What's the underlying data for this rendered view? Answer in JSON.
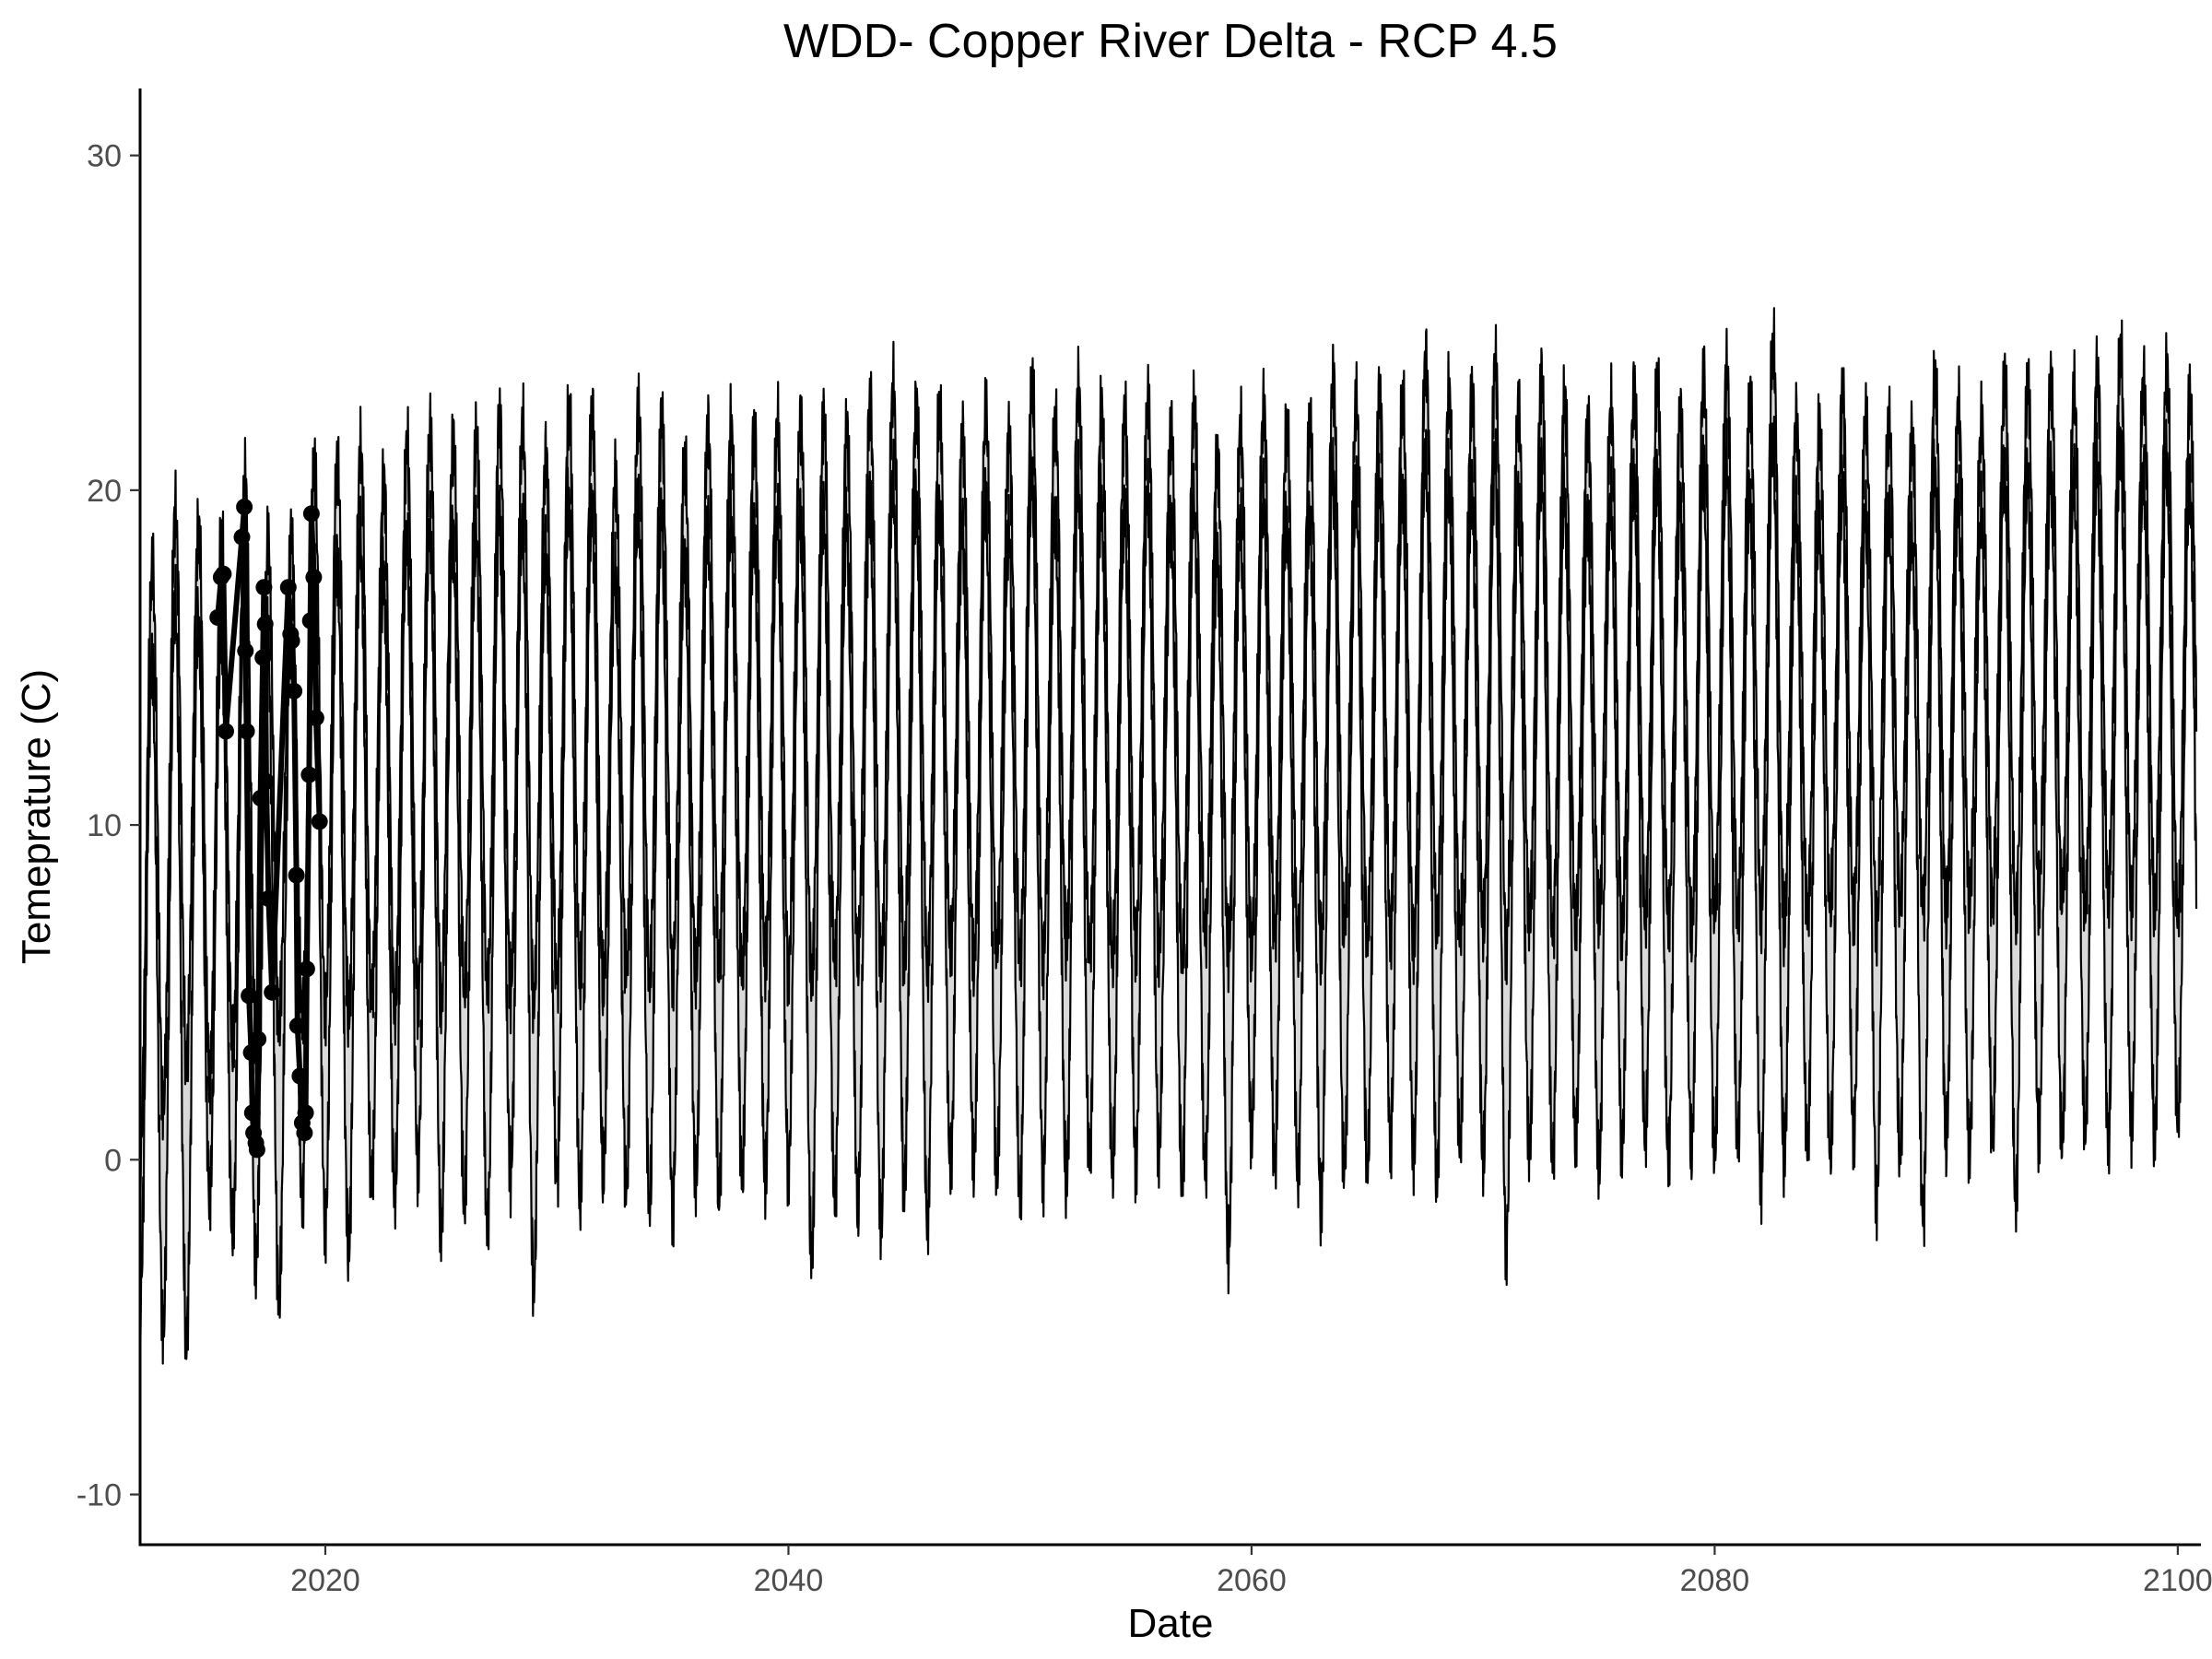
{
  "chart_data": {
    "type": "line",
    "title": "WDD- Copper River Delta - RCP 4.5",
    "xlabel": "Date",
    "ylabel": "Temeprature (C)",
    "xlim": [
      2012,
      2101
    ],
    "ylim": [
      -11.5,
      32
    ],
    "x_ticks": [
      2020,
      2040,
      2060,
      2080,
      2100
    ],
    "y_ticks": [
      -10,
      0,
      10,
      20,
      30
    ],
    "x_tick_labels": [
      "2020",
      "2040",
      "2060",
      "2080",
      "2100"
    ],
    "y_tick_labels": [
      "-10",
      "0",
      "10",
      "20",
      "30"
    ],
    "grid": false,
    "legend": "none",
    "line_color": "#000000",
    "ribbon_color": "#d9d9d9",
    "series": [
      {
        "kind": "projection-ribbon",
        "years": [
          2012,
          2013,
          2014,
          2015,
          2016,
          2017,
          2018,
          2019,
          2020,
          2021,
          2022,
          2023,
          2024,
          2025,
          2026,
          2027,
          2028,
          2029,
          2030,
          2031,
          2032,
          2033,
          2034,
          2035,
          2036,
          2037,
          2038,
          2039,
          2040,
          2041,
          2042,
          2043,
          2044,
          2045,
          2046,
          2047,
          2048,
          2049,
          2050,
          2051,
          2052,
          2053,
          2054,
          2055,
          2056,
          2057,
          2058,
          2059,
          2060,
          2061,
          2062,
          2063,
          2064,
          2065,
          2066,
          2067,
          2068,
          2069,
          2070,
          2071,
          2072,
          2073,
          2074,
          2075,
          2076,
          2077,
          2078,
          2079,
          2080,
          2081,
          2082,
          2083,
          2084,
          2085,
          2086,
          2087,
          2088,
          2089,
          2090,
          2091,
          2092,
          2093,
          2094,
          2095,
          2096,
          2097,
          2098,
          2099,
          2100
        ],
        "summer_peak_upper": [
          17.7,
          19.4,
          18.9,
          18.7,
          20.4,
          18.4,
          18.6,
          20.7,
          20.9,
          21.2,
          20.3,
          21.4,
          21.8,
          21.5,
          21.6,
          22.2,
          21.9,
          21.1,
          22.4,
          22.4,
          20.3,
          22.4,
          22.2,
          20.8,
          21.9,
          21.9,
          21.8,
          22.0,
          22.1,
          22.1,
          21.8,
          22.6,
          23.1,
          22.6,
          22.4,
          21.7,
          22.3,
          21.6,
          23.2,
          22.1,
          23.1,
          22.4,
          22.3,
          22.6,
          21.9,
          22.5,
          21.0,
          21.8,
          22.5,
          21.9,
          22.0,
          23.3,
          22.6,
          22.9,
          22.7,
          24.0,
          22.9,
          22.9,
          23.8,
          22.4,
          23.4,
          22.7,
          22.0,
          22.4,
          23.1,
          23.2,
          22.3,
          23.3,
          23.6,
          22.8,
          24.4,
          22.2,
          21.8,
          22.9,
          22.1,
          22.1,
          21.6,
          23.4,
          22.5,
          22.0,
          23.4,
          23.1,
          23.3,
          22.9,
          23.6,
          24.2,
          23.3,
          23.6,
          22.8
        ],
        "summer_peak_lower": [
          14.8,
          16.7,
          16.1,
          15.8,
          17.5,
          15.6,
          15.9,
          17.8,
          18.0,
          18.5,
          17.5,
          18.6,
          19.0,
          18.6,
          18.7,
          19.4,
          18.9,
          18.3,
          19.7,
          19.6,
          17.5,
          19.5,
          19.4,
          18.0,
          19.0,
          19.1,
          19.0,
          19.2,
          19.3,
          19.3,
          19.0,
          19.8,
          20.3,
          19.8,
          19.5,
          18.9,
          19.5,
          18.8,
          20.5,
          19.3,
          20.3,
          19.6,
          19.5,
          19.9,
          19.1,
          19.6,
          18.2,
          19.0,
          19.8,
          19.1,
          19.2,
          20.5,
          19.9,
          20.2,
          20.0,
          21.2,
          20.2,
          20.1,
          21.0,
          19.7,
          20.7,
          19.9,
          19.3,
          19.7,
          20.4,
          20.5,
          19.6,
          20.6,
          20.9,
          20.0,
          21.6,
          19.4,
          19.0,
          20.2,
          19.3,
          19.4,
          18.8,
          20.6,
          19.8,
          19.3,
          20.7,
          20.4,
          20.6,
          20.2,
          20.9,
          21.5,
          20.6,
          20.9,
          20.1
        ],
        "winter_low_upper": [
          0.0,
          1.6,
          2.9,
          2.5,
          3.2,
          3.6,
          4.0,
          4.4,
          4.6,
          4.2,
          4.8,
          4.5,
          4.9,
          4.7,
          5.2,
          5.0,
          5.1,
          4.8,
          5.3,
          5.5,
          5.2,
          5.6,
          5.4,
          5.7,
          5.5,
          5.8,
          5.6,
          5.9,
          5.8,
          5.4,
          5.9,
          6.1,
          5.7,
          6.0,
          5.8,
          6.2,
          5.9,
          6.3,
          6.0,
          6.1,
          6.4,
          6.2,
          6.0,
          6.5,
          6.3,
          6.1,
          6.6,
          6.2,
          6.4,
          6.7,
          6.5,
          6.3,
          6.8,
          6.6,
          6.9,
          6.4,
          7.0,
          6.7,
          6.9,
          6.5,
          7.1,
          6.8,
          7.0,
          7.2,
          6.9,
          7.3,
          7.1,
          6.8,
          7.4,
          7.2,
          7.5,
          7.0,
          7.3,
          7.6,
          7.4,
          7.1,
          7.7,
          7.5,
          7.3,
          7.8,
          7.6,
          7.4,
          7.9,
          7.7,
          7.5,
          8.0,
          7.8,
          7.6,
          7.3
        ],
        "winter_low_lower": [
          -4.3,
          -5.1,
          -5.4,
          -1.0,
          -2.3,
          -3.1,
          -4.2,
          -1.2,
          -1.9,
          -2.8,
          -0.8,
          -1.0,
          -0.1,
          -2.1,
          -1.3,
          -2.2,
          -0.4,
          -3.7,
          -0.6,
          -1.1,
          -0.4,
          -0.9,
          -1.3,
          -1.4,
          -0.7,
          -1.0,
          -0.5,
          -0.6,
          -0.2,
          -2.9,
          -1.2,
          -1.4,
          -2.0,
          -0.8,
          -1.8,
          -0.3,
          -0.1,
          -0.5,
          -1.1,
          -0.4,
          -0.7,
          0.0,
          -0.3,
          -0.1,
          0.3,
          -0.6,
          -0.4,
          -2.8,
          0.8,
          -0.2,
          -0.4,
          -1.5,
          -0.4,
          -0.2,
          0.6,
          0.1,
          -0.6,
          0.4,
          -0.1,
          -2.5,
          0.2,
          0.0,
          0.5,
          -0.3,
          0.4,
          0.7,
          0.0,
          0.3,
          0.2,
          0.5,
          -0.6,
          0.1,
          0.4,
          0.2,
          0.7,
          -1.1,
          0.2,
          -1.8,
          0.5,
          0.3,
          0.7,
          -1.2,
          0.8,
          0.4,
          0.9,
          0.6,
          1.0,
          0.7,
          1.2
        ]
      },
      {
        "kind": "observed",
        "x": [
          2015.35,
          2015.5,
          2015.6,
          2015.7,
          2016.4,
          2016.5,
          2016.55,
          2016.6,
          2016.7,
          2016.8,
          2016.85,
          2016.9,
          2017.0,
          2017.05,
          2017.1,
          2017.2,
          2017.3,
          2017.35,
          2017.4,
          2017.45,
          2017.55,
          2017.7,
          2018.4,
          2018.5,
          2018.55,
          2018.65,
          2018.75,
          2018.8,
          2018.9,
          2019.0,
          2019.1,
          2019.15,
          2019.2,
          2019.3,
          2019.35,
          2019.4,
          2019.5,
          2019.6,
          2019.75
        ],
        "y": [
          16.2,
          17.4,
          17.5,
          12.8,
          18.6,
          19.5,
          15.2,
          12.8,
          4.9,
          3.2,
          1.4,
          0.8,
          0.5,
          0.3,
          3.6,
          10.8,
          15.0,
          17.1,
          16.0,
          11.3,
          7.8,
          5.0,
          17.1,
          15.7,
          15.5,
          14.0,
          8.5,
          4.0,
          2.5,
          1.1,
          0.8,
          1.4,
          5.7,
          11.5,
          16.1,
          19.3,
          17.4,
          13.2,
          10.1
        ]
      }
    ]
  }
}
